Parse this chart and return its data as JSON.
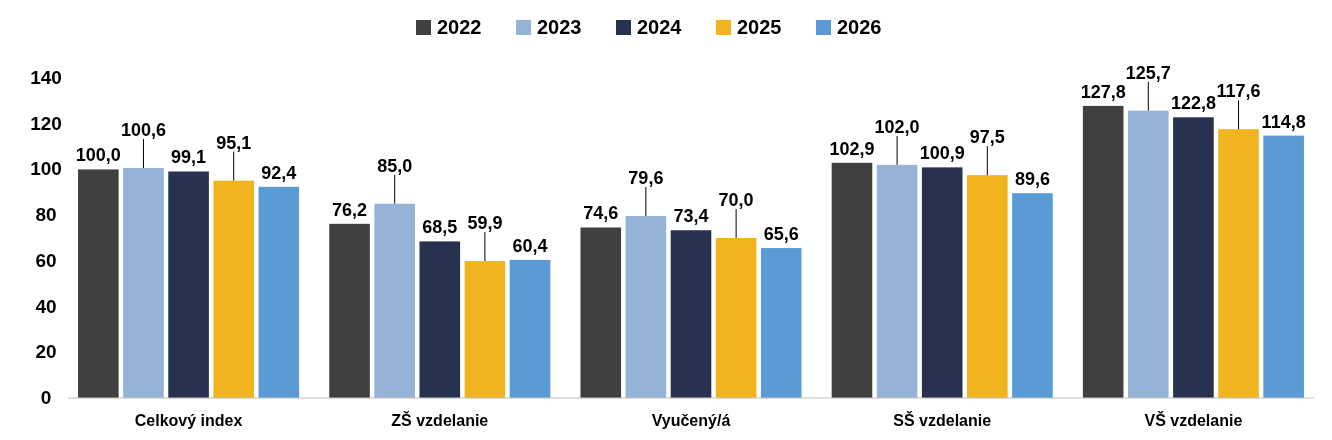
{
  "chart_data": {
    "type": "bar",
    "categories": [
      "Celkový index",
      "ZŠ vzdelanie",
      "Vyučený/á",
      "SŠ vzdelanie",
      "VŠ vzdelanie"
    ],
    "series": [
      {
        "name": "2022",
        "color": "#404040",
        "values": [
          100.0,
          76.2,
          74.6,
          102.9,
          127.8
        ],
        "value_labels": [
          "100,0",
          "76,2",
          "74,6",
          "102,9",
          "127,8"
        ]
      },
      {
        "name": "2023",
        "color": "#95b3d7",
        "values": [
          100.6,
          85.0,
          79.6,
          102.0,
          125.7
        ],
        "value_labels": [
          "100,6",
          "85,0",
          "79,6",
          "102,0",
          "125,7"
        ]
      },
      {
        "name": "2024",
        "color": "#283250",
        "values": [
          99.1,
          68.5,
          73.4,
          100.9,
          122.8
        ],
        "value_labels": [
          "99,1",
          "68,5",
          "73,4",
          "100,9",
          "122,8"
        ]
      },
      {
        "name": "2025",
        "color": "#f2b320",
        "values": [
          95.1,
          59.9,
          70.0,
          97.5,
          117.6
        ],
        "value_labels": [
          "95,1",
          "59,9",
          "70,0",
          "97,5",
          "117,6"
        ]
      },
      {
        "name": "2026",
        "color": "#5b9bd5",
        "values": [
          92.4,
          60.4,
          65.6,
          89.6,
          114.8
        ],
        "value_labels": [
          "92,4",
          "60,4",
          "65,6",
          "89,6",
          "114,8"
        ]
      }
    ],
    "ylim": [
      0,
      140
    ],
    "yticks": [
      0,
      20,
      40,
      60,
      80,
      100,
      120,
      140
    ],
    "grid": false,
    "legend": "top"
  }
}
